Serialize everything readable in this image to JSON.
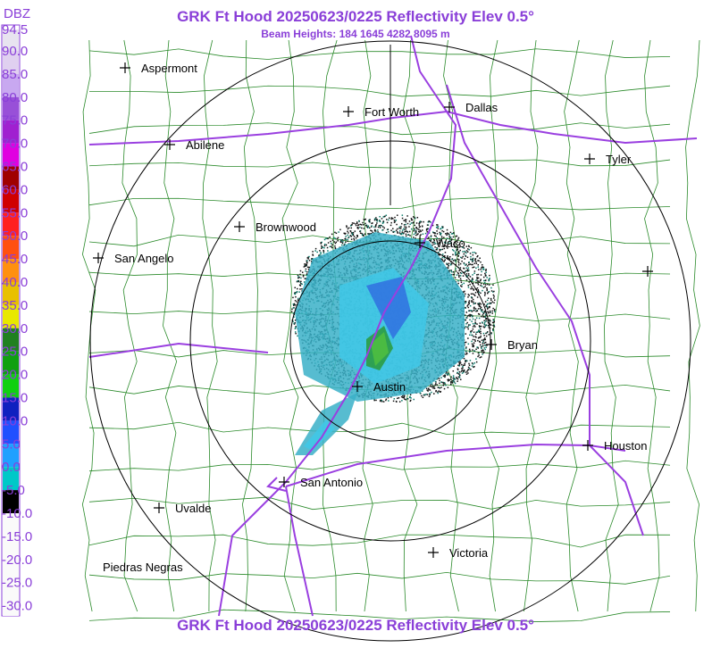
{
  "header": {
    "title": "GRK Ft Hood 20250623/0225 Reflectivity Elev 0.5°",
    "subtitle": "Beam Heights: 184 1645 4282 8095 m"
  },
  "legend": {
    "unit": "DBZ",
    "labels": [
      "94.5",
      "90.0",
      "85.0",
      "80.0",
      "75.0",
      "70.0",
      "65.0",
      "60.0",
      "55.0",
      "50.0",
      "45.0",
      "40.0",
      "35.0",
      "30.0",
      "25.0",
      "20.0",
      "15.0",
      "10.0",
      "5.0",
      "0.0",
      "-5.0",
      "-10.0",
      "-15.0",
      "-20.0",
      "-25.0",
      "-30.0"
    ]
  },
  "cities": [
    {
      "label": "Aspermont"
    },
    {
      "label": "Fort Worth"
    },
    {
      "label": "Dallas"
    },
    {
      "label": "Abilene"
    },
    {
      "label": "Tyler"
    },
    {
      "label": "Brownwood"
    },
    {
      "label": "Waco"
    },
    {
      "label": "San Angelo"
    },
    {
      "label": "Bryan"
    },
    {
      "label": "Austin"
    },
    {
      "label": "Houston"
    },
    {
      "label": "San Antonio"
    },
    {
      "label": "Uvalde"
    },
    {
      "label": "Victoria"
    },
    {
      "label": "Piedras Negras"
    }
  ],
  "footer": {
    "title": "GRK Ft Hood 20250623/0225 Reflectivity Elev 0.5°"
  }
}
